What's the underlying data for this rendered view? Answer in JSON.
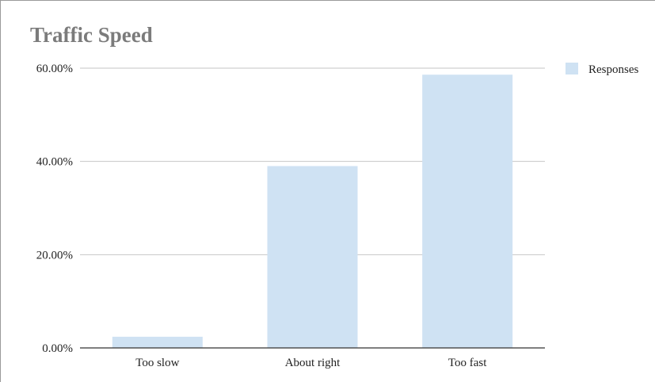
{
  "chart_data": {
    "type": "bar",
    "title": "Traffic Speed",
    "xlabel": "",
    "ylabel": "",
    "categories": [
      "Too slow",
      "About right",
      "Too fast"
    ],
    "series": [
      {
        "name": "Responses",
        "values": [
          2.4,
          39.0,
          58.6
        ],
        "color": "#cfe2f3"
      }
    ],
    "ylim": [
      0,
      60
    ],
    "yticks": [
      0,
      20,
      40,
      60
    ],
    "ytick_labels": [
      "0.00%",
      "20.00%",
      "40.00%",
      "60.00%"
    ],
    "grid": true,
    "legend": "right"
  }
}
